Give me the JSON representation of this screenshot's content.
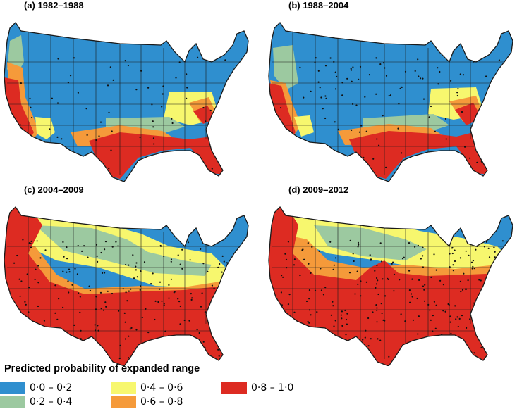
{
  "colors": {
    "c1": "#2f8fcf",
    "c2": "#9cc9a0",
    "c3": "#f7f76e",
    "c4": "#f59a3a",
    "c5": "#dd2b22",
    "border": "#1a1a1a",
    "dots": "#111111"
  },
  "panels": [
    {
      "label": "(a)  1982–1988"
    },
    {
      "label": "(b)  1988–2004"
    },
    {
      "label": "(c)  2004–2009"
    },
    {
      "label": "(d)  2009–2012"
    }
  ],
  "legend": {
    "title": "Predicted probability of expanded range",
    "items": [
      {
        "label": "0·0 – 0·2",
        "color_key": "c1"
      },
      {
        "label": "0·2 – 0·4",
        "color_key": "c2"
      },
      {
        "label": "0·4 – 0·6",
        "color_key": "c3"
      },
      {
        "label": "0·6 – 0·8",
        "color_key": "c4"
      },
      {
        "label": "0·8 – 1·0",
        "color_key": "c5"
      }
    ]
  }
}
